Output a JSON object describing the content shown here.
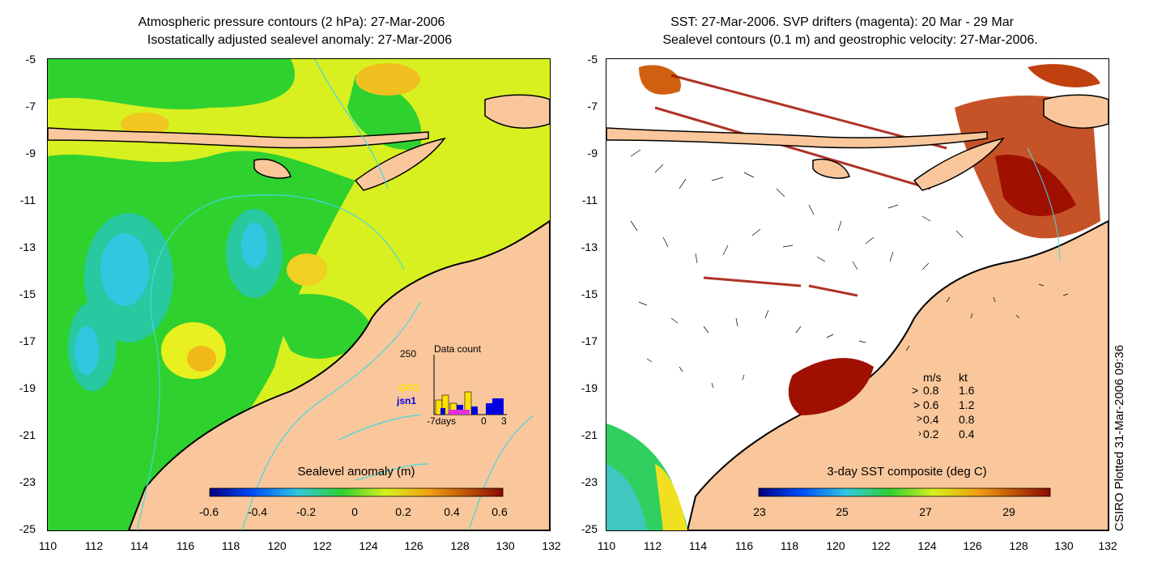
{
  "left": {
    "title_line1": "Atmospheric pressure contours (2 hPa): 27-Mar-2006",
    "title_line2": "Isostatically adjusted sealevel anomaly: 27-Mar-2006",
    "colorbar_title": "Sealevel anomaly (m)",
    "colorbar_labels": [
      "-0.6",
      "-0.4",
      "-0.2",
      "0",
      "0.2",
      "0.4",
      "0.6"
    ],
    "inset": {
      "title": "Data count",
      "ymax_label": "250",
      "series": [
        "GFO",
        "jsn1"
      ],
      "x_labels": [
        "-7days",
        "0",
        "3"
      ]
    }
  },
  "right": {
    "title_line1": "SST: 27-Mar-2006. SVP drifters (magenta): 20 Mar - 29 Mar",
    "title_line2": "Sealevel contours (0.1 m) and geostrophic velocity: 27-Mar-2006.",
    "colorbar_title": "3-day SST composite (deg C)",
    "colorbar_labels": [
      "23",
      "25",
      "27",
      "29"
    ],
    "legend": {
      "header_ms": "m/s",
      "header_kt": "kt",
      "rows": [
        {
          "ms": "0.8",
          "kt": "1.6"
        },
        {
          "ms": "0.6",
          "kt": "1.2"
        },
        {
          "ms": "0.4",
          "kt": "0.8"
        },
        {
          "ms": "0.2",
          "kt": "0.4"
        }
      ]
    }
  },
  "axes": {
    "y_labels": [
      "-5",
      "-7",
      "-9",
      "-11",
      "-13",
      "-15",
      "-17",
      "-19",
      "-21",
      "-23",
      "-25"
    ],
    "x_labels": [
      "110",
      "112",
      "114",
      "116",
      "118",
      "120",
      "122",
      "124",
      "126",
      "128",
      "130",
      "132"
    ]
  },
  "credit": "CSIRO Plotted 31-Mar-2006 09:36",
  "colors": {
    "land": "#f9c79b",
    "ocean_green": "#2fd12f",
    "ocean_yellow": "#d8f020",
    "cyan_contour": "#40d8e0",
    "sst_red": "#a01000"
  }
}
